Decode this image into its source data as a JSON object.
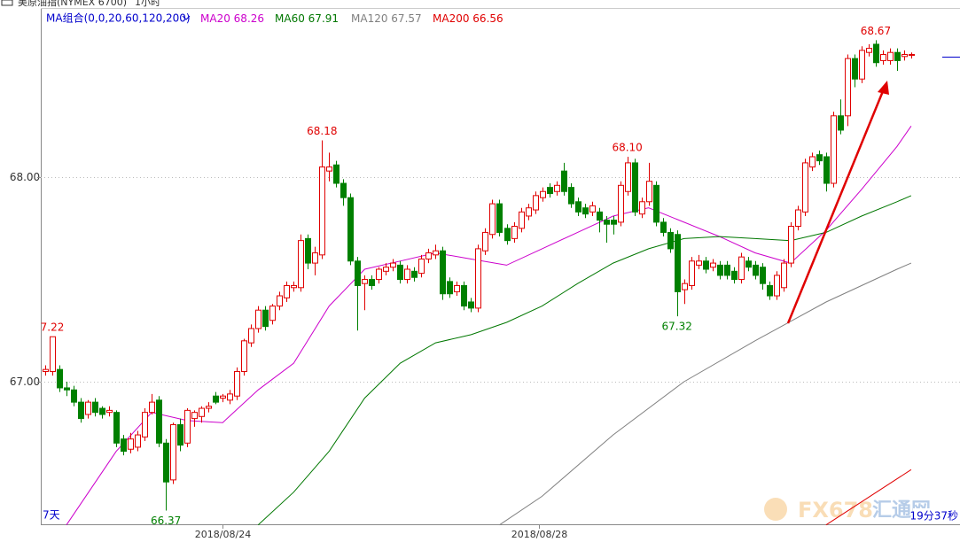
{
  "header": {
    "title": "美原油指(NYMEX 6700)",
    "period": "1小时"
  },
  "chart_data": {
    "type": "candlestick",
    "ma_label": "MA组合(0,0,20,60,120,200)",
    "up_color": "#e00000",
    "down_color": "#008000",
    "ylim": [
      66.303,
      68.823
    ],
    "yticks": [
      {
        "value": 67,
        "label": "67.00"
      },
      {
        "value": 68,
        "label": "68.00"
      }
    ],
    "xlim": [
      -0.625,
      128.875
    ],
    "xticks": [
      {
        "value": 25,
        "label": "2018/08/24"
      },
      {
        "value": 69.5,
        "label": "2018/08/28"
      }
    ],
    "grid": true,
    "ohlc": [
      [
        67.05,
        67.08,
        67.03,
        67.06
      ],
      [
        67.05,
        67.22,
        67.03,
        67.22
      ],
      [
        67.06,
        67.08,
        66.95,
        66.97
      ],
      [
        66.97,
        67.0,
        66.93,
        66.96
      ],
      [
        66.96,
        66.98,
        66.88,
        66.9
      ],
      [
        66.9,
        66.92,
        66.8,
        66.82
      ],
      [
        66.84,
        66.91,
        66.82,
        66.9
      ],
      [
        66.9,
        66.92,
        66.83,
        66.85
      ],
      [
        66.87,
        66.88,
        66.82,
        66.84
      ],
      [
        66.85,
        66.88,
        66.83,
        66.86
      ],
      [
        66.85,
        66.86,
        66.68,
        66.7
      ],
      [
        66.72,
        66.74,
        66.64,
        66.66
      ],
      [
        66.67,
        66.75,
        66.65,
        66.72
      ],
      [
        66.68,
        66.76,
        66.66,
        66.74
      ],
      [
        66.73,
        66.87,
        66.71,
        66.85
      ],
      [
        66.85,
        66.94,
        66.84,
        66.9
      ],
      [
        66.91,
        66.93,
        66.68,
        66.7
      ],
      [
        66.7,
        66.72,
        66.37,
        66.51
      ],
      [
        66.52,
        66.8,
        66.5,
        66.79
      ],
      [
        66.79,
        66.82,
        66.66,
        66.69
      ],
      [
        66.7,
        66.87,
        66.68,
        66.86
      ],
      [
        66.82,
        66.86,
        66.78,
        66.85
      ],
      [
        66.83,
        66.88,
        66.8,
        66.87
      ],
      [
        66.87,
        66.9,
        66.85,
        66.88
      ],
      [
        66.93,
        66.95,
        66.89,
        66.9
      ],
      [
        66.92,
        66.94,
        66.9,
        66.93
      ],
      [
        66.91,
        66.96,
        66.89,
        66.94
      ],
      [
        66.93,
        67.07,
        66.91,
        67.05
      ],
      [
        67.05,
        67.21,
        67.03,
        67.2
      ],
      [
        67.19,
        67.28,
        67.17,
        67.26
      ],
      [
        67.26,
        67.37,
        67.24,
        67.35
      ],
      [
        67.35,
        67.37,
        67.25,
        67.27
      ],
      [
        67.3,
        67.38,
        67.28,
        67.37
      ],
      [
        67.37,
        67.44,
        67.35,
        67.42
      ],
      [
        67.41,
        67.49,
        67.39,
        67.47
      ],
      [
        67.46,
        67.49,
        67.44,
        67.47
      ],
      [
        67.46,
        67.72,
        67.44,
        67.69
      ],
      [
        67.7,
        67.72,
        67.55,
        67.58
      ],
      [
        67.58,
        67.66,
        67.52,
        67.63
      ],
      [
        67.62,
        68.18,
        67.6,
        68.05
      ],
      [
        68.03,
        68.12,
        67.98,
        68.05
      ],
      [
        68.06,
        68.08,
        67.95,
        67.97
      ],
      [
        67.97,
        67.99,
        67.86,
        67.9
      ],
      [
        67.9,
        67.92,
        67.57,
        67.59
      ],
      [
        67.59,
        67.61,
        67.25,
        67.47
      ],
      [
        67.48,
        67.52,
        67.35,
        67.5
      ],
      [
        67.5,
        67.52,
        67.45,
        67.47
      ],
      [
        67.5,
        67.56,
        67.48,
        67.55
      ],
      [
        67.54,
        67.58,
        67.52,
        67.56
      ],
      [
        67.56,
        67.6,
        67.54,
        67.58
      ],
      [
        67.57,
        67.59,
        67.48,
        67.5
      ],
      [
        67.5,
        67.57,
        67.48,
        67.55
      ],
      [
        67.54,
        67.56,
        67.49,
        67.51
      ],
      [
        67.53,
        67.62,
        67.51,
        67.6
      ],
      [
        67.6,
        67.65,
        67.58,
        67.63
      ],
      [
        67.62,
        67.67,
        67.6,
        67.64
      ],
      [
        67.64,
        67.66,
        67.4,
        67.43
      ],
      [
        67.49,
        67.51,
        67.41,
        67.43
      ],
      [
        67.44,
        67.49,
        67.42,
        67.47
      ],
      [
        67.47,
        67.49,
        67.35,
        67.37
      ],
      [
        67.39,
        67.41,
        67.34,
        67.36
      ],
      [
        67.36,
        67.67,
        67.34,
        67.65
      ],
      [
        67.64,
        67.75,
        67.62,
        67.73
      ],
      [
        67.72,
        67.89,
        67.7,
        67.87
      ],
      [
        67.87,
        67.89,
        67.71,
        67.73
      ],
      [
        67.75,
        67.77,
        67.67,
        67.69
      ],
      [
        67.7,
        67.78,
        67.68,
        67.76
      ],
      [
        67.75,
        67.85,
        67.73,
        67.83
      ],
      [
        67.81,
        67.87,
        67.79,
        67.85
      ],
      [
        67.84,
        67.93,
        67.82,
        67.91
      ],
      [
        67.9,
        67.95,
        67.88,
        67.93
      ],
      [
        67.95,
        67.97,
        67.9,
        67.92
      ],
      [
        67.93,
        67.98,
        67.91,
        67.96
      ],
      [
        68.03,
        68.07,
        67.91,
        67.93
      ],
      [
        67.95,
        67.97,
        67.85,
        67.87
      ],
      [
        67.88,
        67.9,
        67.81,
        67.83
      ],
      [
        67.85,
        67.87,
        67.8,
        67.82
      ],
      [
        67.83,
        67.88,
        67.81,
        67.86
      ],
      [
        67.83,
        67.85,
        67.73,
        67.79
      ],
      [
        67.79,
        67.81,
        67.68,
        67.77
      ],
      [
        67.79,
        67.81,
        67.72,
        67.77
      ],
      [
        67.78,
        67.98,
        67.76,
        67.96
      ],
      [
        67.93,
        68.1,
        67.91,
        68.07
      ],
      [
        68.07,
        68.09,
        67.81,
        67.83
      ],
      [
        67.82,
        67.9,
        67.8,
        67.88
      ],
      [
        67.88,
        68.07,
        67.86,
        67.98
      ],
      [
        67.96,
        67.98,
        67.76,
        67.78
      ],
      [
        67.78,
        67.8,
        67.71,
        67.73
      ],
      [
        67.73,
        67.75,
        67.63,
        67.65
      ],
      [
        67.72,
        67.74,
        67.32,
        67.44
      ],
      [
        67.45,
        67.5,
        67.38,
        67.48
      ],
      [
        67.47,
        67.61,
        67.45,
        67.59
      ],
      [
        67.57,
        67.62,
        67.55,
        67.59
      ],
      [
        67.59,
        67.61,
        67.53,
        67.55
      ],
      [
        67.56,
        67.6,
        67.54,
        67.58
      ],
      [
        67.57,
        67.59,
        67.5,
        67.52
      ],
      [
        67.57,
        67.59,
        67.5,
        67.52
      ],
      [
        67.54,
        67.56,
        67.48,
        67.5
      ],
      [
        67.5,
        67.63,
        67.48,
        67.61
      ],
      [
        67.59,
        67.61,
        67.54,
        67.56
      ],
      [
        67.57,
        67.59,
        67.5,
        67.52
      ],
      [
        67.56,
        67.58,
        67.45,
        67.48
      ],
      [
        67.47,
        67.49,
        67.4,
        67.42
      ],
      [
        67.42,
        67.54,
        67.4,
        67.52
      ],
      [
        67.46,
        67.6,
        67.44,
        67.58
      ],
      [
        67.58,
        67.78,
        67.56,
        67.76
      ],
      [
        67.76,
        67.86,
        67.74,
        67.84
      ],
      [
        67.83,
        68.09,
        67.81,
        68.07
      ],
      [
        68.05,
        68.12,
        68.03,
        68.1
      ],
      [
        68.11,
        68.13,
        68.06,
        68.08
      ],
      [
        68.1,
        68.12,
        67.93,
        67.97
      ],
      [
        67.97,
        68.32,
        67.95,
        68.3
      ],
      [
        68.3,
        68.38,
        68.21,
        68.23
      ],
      [
        68.3,
        68.6,
        68.25,
        68.58
      ],
      [
        68.58,
        68.6,
        68.44,
        68.48
      ],
      [
        68.48,
        68.64,
        68.46,
        68.62
      ],
      [
        68.61,
        68.65,
        68.59,
        68.63
      ],
      [
        68.65,
        68.67,
        68.54,
        68.56
      ],
      [
        68.57,
        68.62,
        68.55,
        68.6
      ],
      [
        68.57,
        68.63,
        68.55,
        68.61
      ],
      [
        68.61,
        68.63,
        68.52,
        68.57
      ],
      [
        68.59,
        68.62,
        68.57,
        68.6
      ],
      [
        68.6,
        68.61,
        68.58,
        68.6
      ]
    ],
    "series": [
      {
        "name": "MA20",
        "last": 68.26,
        "color": "#cc00cc",
        "x": [
          3,
          10,
          15,
          20,
          25,
          30,
          35,
          40,
          45,
          50,
          55,
          60,
          65,
          70,
          75,
          80,
          85,
          90,
          95,
          100,
          105,
          110,
          115,
          120,
          122
        ],
        "values": [
          66.3,
          66.66,
          66.85,
          66.81,
          66.8,
          66.96,
          67.09,
          67.37,
          67.55,
          67.59,
          67.63,
          67.6,
          67.57,
          67.65,
          67.73,
          67.81,
          67.85,
          67.78,
          67.71,
          67.63,
          67.58,
          67.74,
          67.94,
          68.15,
          68.25
        ]
      },
      {
        "name": "MA60",
        "last": 67.91,
        "color": "#007700",
        "x": [
          30,
          35,
          40,
          45,
          50,
          55,
          60,
          65,
          70,
          75,
          80,
          85,
          90,
          95,
          100,
          105,
          110,
          115,
          120,
          122
        ],
        "values": [
          66.3,
          66.46,
          66.66,
          66.92,
          67.09,
          67.19,
          67.23,
          67.29,
          67.37,
          67.48,
          67.58,
          67.65,
          67.7,
          67.71,
          67.7,
          67.69,
          67.73,
          67.81,
          67.88,
          67.91
        ]
      },
      {
        "name": "MA120",
        "last": 67.57,
        "color": "#808080",
        "x": [
          64,
          70,
          80,
          90,
          100,
          110,
          120,
          122
        ],
        "values": [
          66.3,
          66.44,
          66.74,
          67.0,
          67.2,
          67.39,
          67.55,
          67.58
        ]
      },
      {
        "name": "MA200",
        "last": 66.56,
        "color": "#e00000",
        "x": [
          110,
          122
        ],
        "values": [
          66.3,
          66.57
        ]
      }
    ],
    "annotations": [
      {
        "text": "7.22",
        "x": 1,
        "y": 67.22
      },
      {
        "text": "66.37",
        "x": 17,
        "y": 66.37
      },
      {
        "text": "68.18",
        "x": 39,
        "y": 68.18
      },
      {
        "text": "68.10",
        "x": 82,
        "y": 68.1
      },
      {
        "text": "67.32",
        "x": 89,
        "y": 67.32
      },
      {
        "text": "68.67",
        "x": 117,
        "y": 68.67
      }
    ]
  },
  "footer": {
    "range": "7天",
    "timer": "19分37秒"
  },
  "watermark": {
    "brand": "FX678",
    "site": "汇通网"
  }
}
